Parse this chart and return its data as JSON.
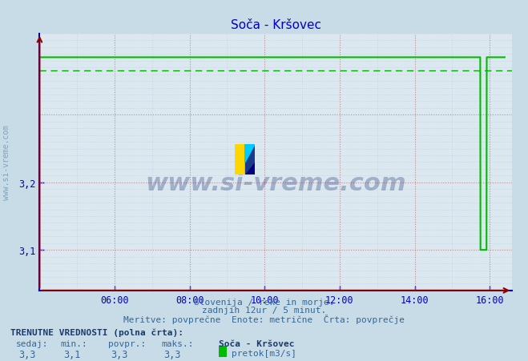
{
  "title": "Soča - Kršovec",
  "title_color": "#0000cc",
  "bg_color": "#c8dce8",
  "plot_bg_color": "#dce8f0",
  "axis_color": "#0000bb",
  "grid_color_major": "#cc8888",
  "grid_color_minor": "#bbccdd",
  "dashed_line_color": "#00aa00",
  "line_color": "#00bb00",
  "xmin": 4.0,
  "xmax": 16.6,
  "ymin": 3.04,
  "ymax": 3.42,
  "yticks": [
    3.1,
    3.2
  ],
  "xtick_labels": [
    "06:00",
    "08:00",
    "10:00",
    "12:00",
    "14:00",
    "16:00"
  ],
  "xtick_positions": [
    6,
    8,
    10,
    12,
    14,
    16
  ],
  "xlabel_text1": "Slovenija / reke in morje.",
  "xlabel_text2": "zadnjih 12ur / 5 minut.",
  "xlabel_text3": "Meritve: povprečne  Enote: metrične  Črta: povprečje",
  "footer_bold": "TRENUTNE VREDNOSTI (polna črta):",
  "footer_labels": [
    "sedaj:",
    "min.:",
    "povpr.:",
    "maks.:"
  ],
  "footer_values": [
    "3,3",
    "3,1",
    "3,3",
    "3,3"
  ],
  "footer_station": "Soča - Kršovec",
  "footer_unit": "pretok[m3/s]",
  "footer_square_color": "#00bb00",
  "watermark": "www.si-vreme.com",
  "watermark_color": "#1a3070",
  "watermark_alpha": 0.3,
  "sidewatermark_color": "#6688aa",
  "sidewatermark_alpha": 0.7,
  "flow_value": 3.385,
  "flow_min": 3.1,
  "dashed_y": 3.365,
  "drop_time": 15.75,
  "rise_time": 15.92,
  "end_time": 16.4
}
